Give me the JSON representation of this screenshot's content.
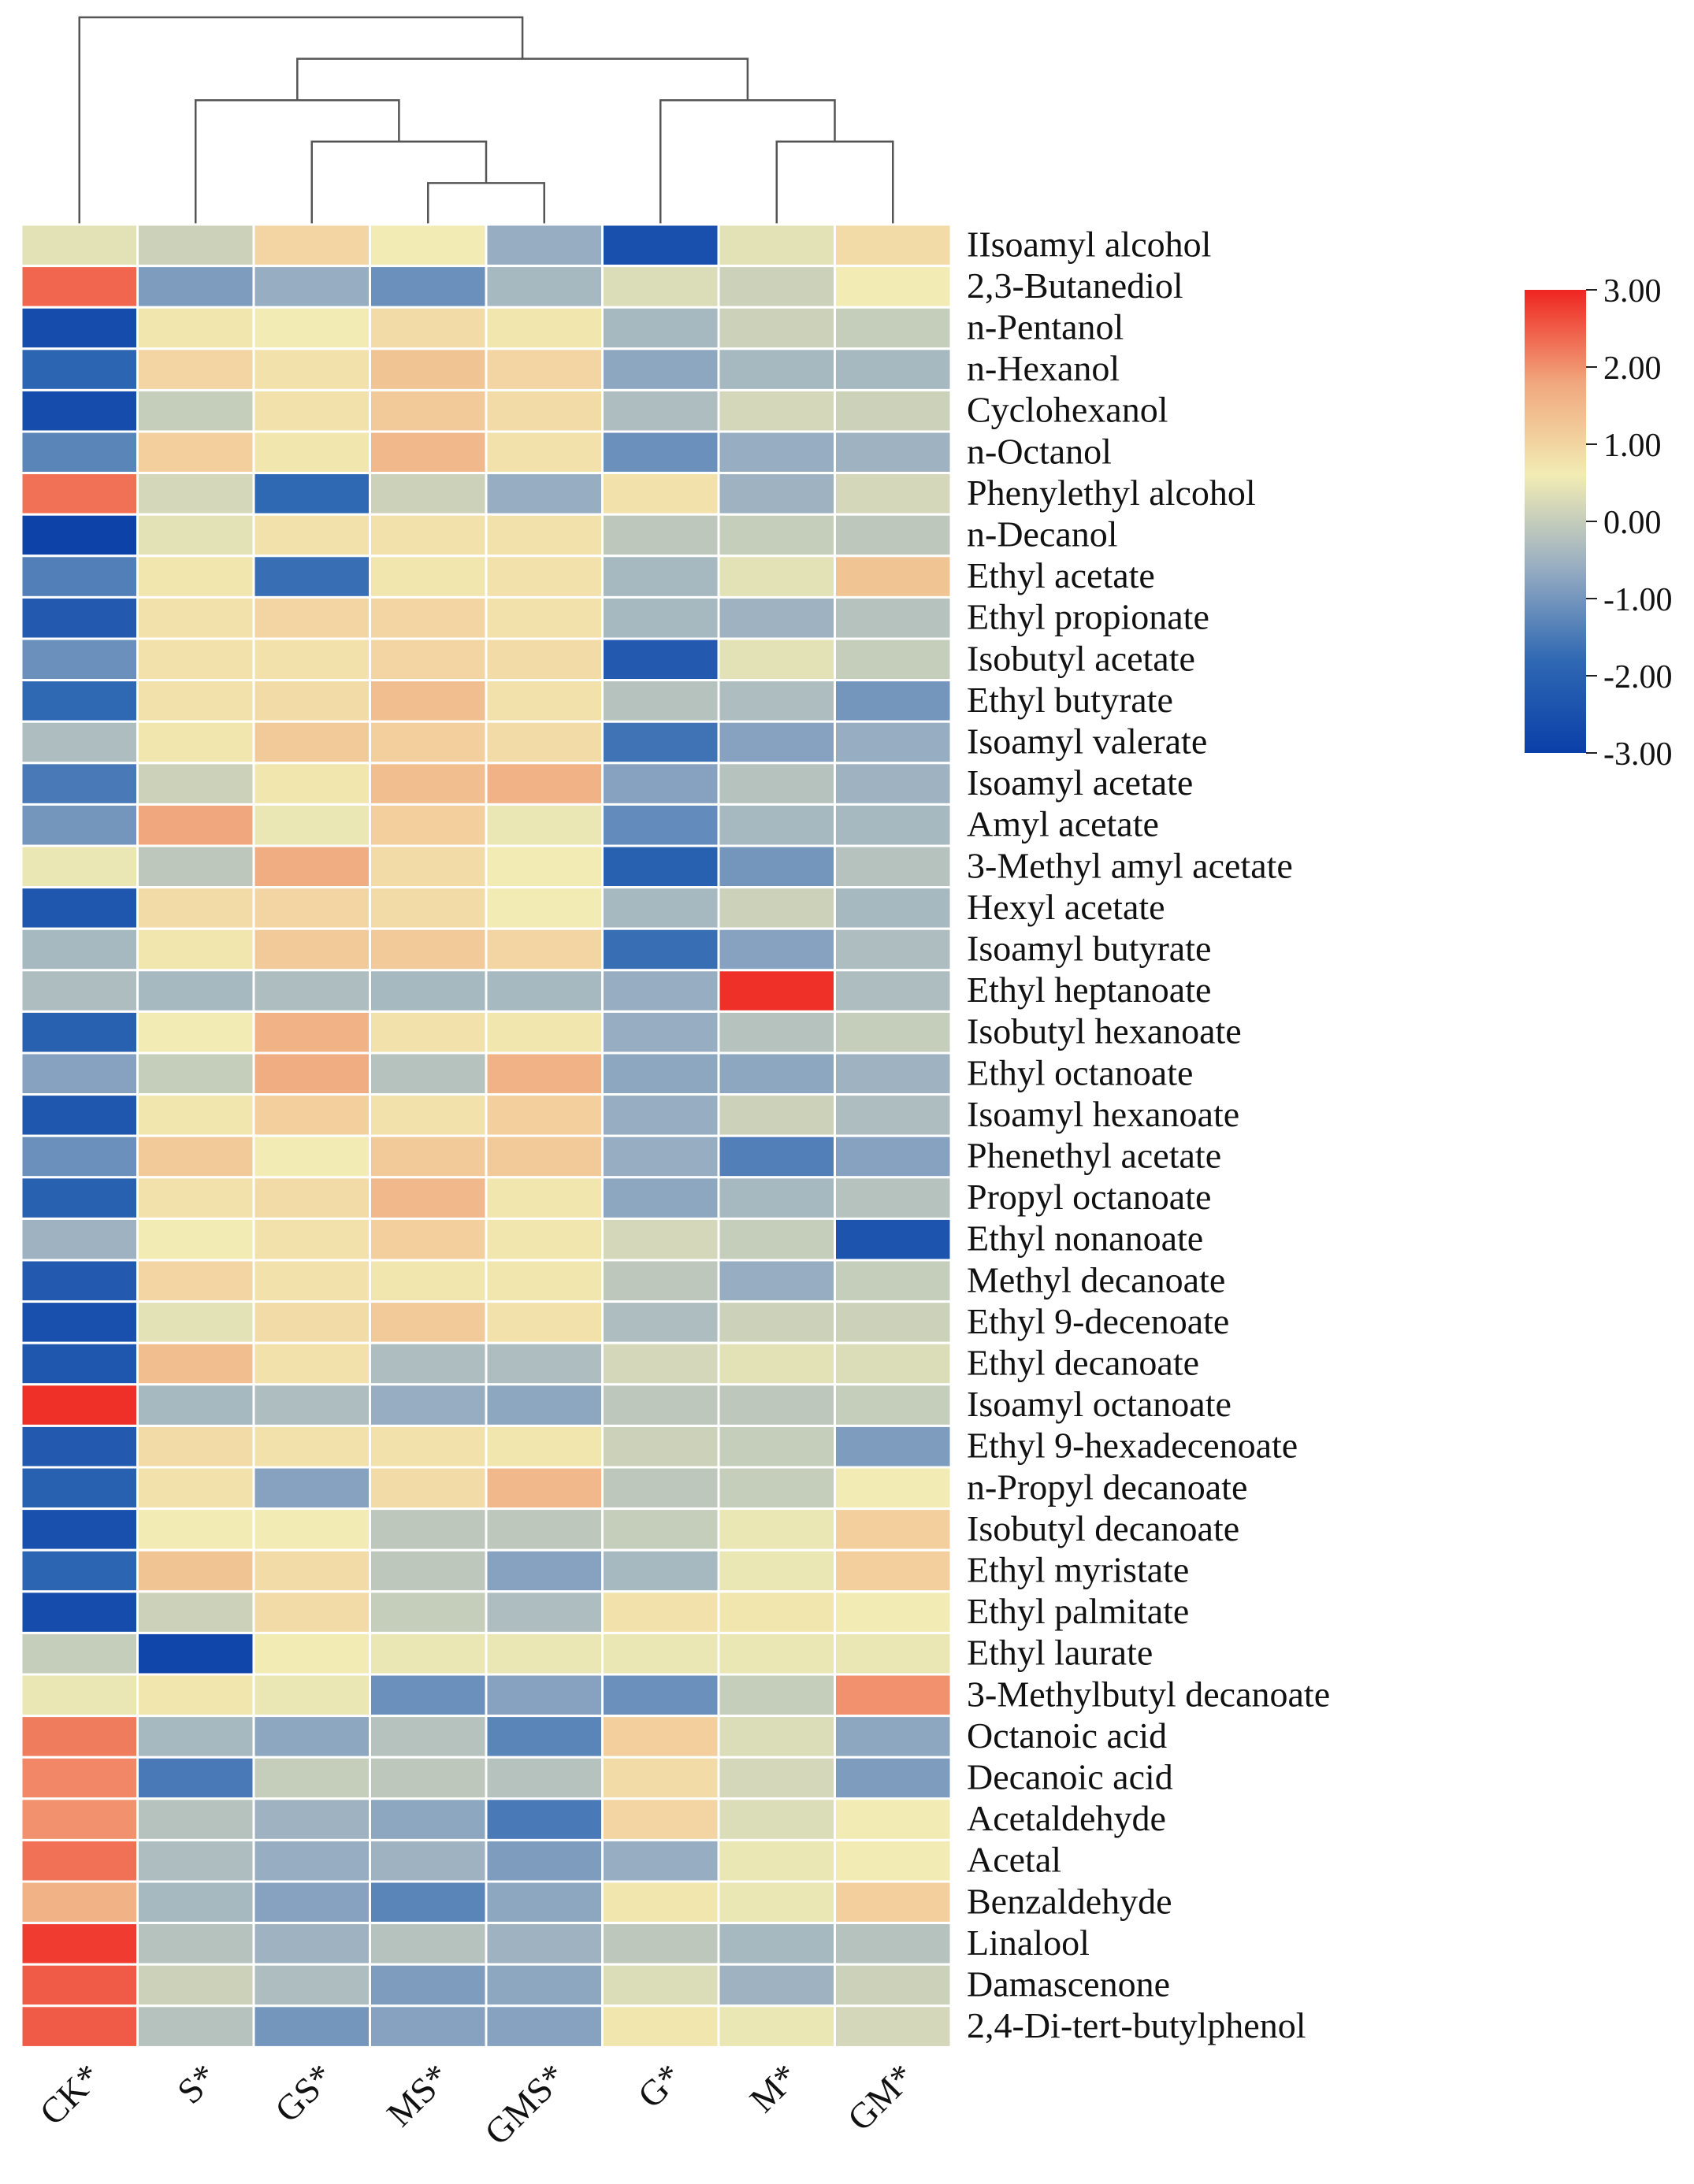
{
  "chart_data": {
    "type": "heatmap",
    "title": "",
    "columns": [
      "CK*",
      "S*",
      "GS*",
      "MS*",
      "GMS*",
      "G*",
      "M*",
      "GM*"
    ],
    "rows": [
      "IIsoamyl alcohol",
      "2,3-Butanediol",
      "n-Pentanol",
      "n-Hexanol",
      "Cyclohexanol",
      "n-Octanol",
      "Phenylethyl alcohol",
      "n-Decanol",
      "Ethyl acetate",
      "Ethyl propionate",
      "Isobutyl acetate",
      "Ethyl butyrate",
      "Isoamyl valerate",
      "Isoamyl acetate",
      "Amyl acetate",
      "3-Methyl amyl acetate",
      "Hexyl acetate",
      "Isoamyl butyrate",
      "Ethyl heptanoate",
      "Isobutyl hexanoate",
      "Ethyl octanoate",
      "Isoamyl hexanoate",
      "Phenethyl acetate",
      "Propyl octanoate",
      "Ethyl nonanoate",
      "Methyl decanoate",
      "Ethyl 9-decenoate",
      "Ethyl decanoate",
      "Isoamyl octanoate",
      "Ethyl 9-hexadecenoate",
      "n-Propyl decanoate",
      "Isobutyl decanoate",
      "Ethyl myristate",
      "Ethyl palmitate",
      "Ethyl laurate",
      "3-Methylbutyl decanoate",
      "Octanoic acid",
      "Decanoic acid",
      "Acetaldehyde",
      "Acetal",
      "Benzaldehyde",
      "Linalool",
      "Damascenone",
      "2,4-Di-tert-butylphenol"
    ],
    "values": [
      [
        0.4,
        0.1,
        1.0,
        0.6,
        -0.6,
        -2.5,
        0.4,
        0.9
      ],
      [
        2.4,
        -0.9,
        -0.6,
        -1.1,
        -0.4,
        0.3,
        0.1,
        0.6
      ],
      [
        -2.6,
        0.7,
        0.6,
        0.9,
        0.7,
        -0.4,
        0.1,
        0.0
      ],
      [
        -1.9,
        1.0,
        0.8,
        1.3,
        1.0,
        -0.7,
        -0.4,
        -0.4
      ],
      [
        -2.6,
        0.0,
        0.8,
        1.2,
        0.9,
        -0.3,
        0.2,
        0.1
      ],
      [
        -1.3,
        1.1,
        0.7,
        1.5,
        0.8,
        -1.1,
        -0.6,
        -0.5
      ],
      [
        2.3,
        0.2,
        -1.8,
        0.1,
        -0.6,
        0.8,
        -0.5,
        0.2
      ],
      [
        -2.9,
        0.4,
        0.8,
        0.8,
        0.8,
        -0.1,
        0.0,
        -0.1
      ],
      [
        -1.4,
        0.7,
        -1.7,
        0.7,
        0.8,
        -0.4,
        0.4,
        1.3
      ],
      [
        -2.2,
        0.8,
        1.0,
        1.0,
        0.8,
        -0.4,
        -0.5,
        -0.2
      ],
      [
        -1.1,
        0.8,
        0.8,
        1.0,
        0.9,
        -2.2,
        0.4,
        0.0
      ],
      [
        -1.8,
        0.8,
        0.9,
        1.4,
        0.8,
        -0.2,
        -0.3,
        -1.0
      ],
      [
        -0.3,
        0.7,
        1.2,
        1.1,
        0.9,
        -1.6,
        -0.8,
        -0.6
      ],
      [
        -1.5,
        0.1,
        0.7,
        1.4,
        1.6,
        -0.8,
        -0.2,
        -0.5
      ],
      [
        -1.0,
        1.8,
        0.5,
        1.1,
        0.5,
        -1.2,
        -0.4,
        -0.4
      ],
      [
        0.5,
        -0.1,
        1.7,
        0.9,
        0.6,
        -2.0,
        -1.0,
        -0.2
      ],
      [
        -2.3,
        0.9,
        1.0,
        0.9,
        0.6,
        -0.4,
        0.1,
        -0.4
      ],
      [
        -0.4,
        0.7,
        1.2,
        1.2,
        1.0,
        -1.7,
        -0.8,
        -0.3
      ],
      [
        -0.3,
        -0.4,
        -0.3,
        -0.4,
        -0.4,
        -0.6,
        2.9,
        -0.3
      ],
      [
        -2.0,
        0.6,
        1.6,
        0.8,
        0.7,
        -0.6,
        -0.2,
        0.0
      ],
      [
        -0.8,
        0.0,
        1.7,
        -0.2,
        1.6,
        -0.7,
        -0.7,
        -0.5
      ],
      [
        -2.3,
        0.7,
        1.1,
        0.8,
        1.1,
        -0.6,
        0.1,
        -0.3
      ],
      [
        -1.1,
        1.2,
        0.6,
        1.2,
        1.2,
        -0.6,
        -1.4,
        -0.8
      ],
      [
        -2.0,
        0.8,
        0.9,
        1.5,
        0.7,
        -0.7,
        -0.4,
        -0.2
      ],
      [
        -0.5,
        0.6,
        0.8,
        1.1,
        0.7,
        0.2,
        0.0,
        -2.4
      ],
      [
        -2.2,
        1.0,
        0.8,
        0.7,
        0.7,
        -0.1,
        -0.6,
        0.0
      ],
      [
        -2.5,
        0.4,
        0.9,
        1.2,
        0.8,
        -0.3,
        0.1,
        0.1
      ],
      [
        -2.3,
        1.4,
        0.8,
        -0.3,
        -0.3,
        0.2,
        0.4,
        0.3
      ],
      [
        2.9,
        -0.4,
        -0.3,
        -0.6,
        -0.7,
        -0.1,
        -0.1,
        0.0
      ],
      [
        -2.2,
        0.9,
        0.8,
        0.8,
        0.7,
        0.1,
        0.0,
        -0.9
      ],
      [
        -2.0,
        0.8,
        -0.8,
        0.9,
        1.5,
        -0.1,
        0.0,
        0.6
      ],
      [
        -2.5,
        0.6,
        0.6,
        -0.1,
        -0.1,
        0.0,
        0.5,
        1.1
      ],
      [
        -1.9,
        1.3,
        0.9,
        -0.1,
        -0.8,
        -0.4,
        0.5,
        1.1
      ],
      [
        -2.6,
        0.1,
        0.9,
        0.0,
        -0.3,
        0.8,
        0.7,
        0.6
      ],
      [
        0.0,
        -2.8,
        0.6,
        0.5,
        0.5,
        0.5,
        0.5,
        0.5
      ],
      [
        0.5,
        0.7,
        0.5,
        -1.1,
        -0.8,
        -1.1,
        0.0,
        2.0
      ],
      [
        2.2,
        -0.4,
        -0.7,
        -0.2,
        -1.3,
        1.1,
        0.3,
        -0.7
      ],
      [
        2.1,
        -1.5,
        0.0,
        -0.1,
        -0.2,
        0.9,
        0.2,
        -0.9
      ],
      [
        2.0,
        -0.2,
        -0.5,
        -0.7,
        -1.5,
        1.0,
        0.3,
        0.6
      ],
      [
        2.3,
        -0.3,
        -0.6,
        -0.5,
        -0.9,
        -0.6,
        0.5,
        0.6
      ],
      [
        1.6,
        -0.4,
        -0.8,
        -1.3,
        -0.7,
        0.7,
        0.5,
        1.1
      ],
      [
        2.8,
        -0.2,
        -0.5,
        -0.2,
        -0.5,
        -0.1,
        -0.4,
        -0.2
      ],
      [
        2.5,
        0.1,
        -0.3,
        -0.9,
        -0.7,
        0.3,
        -0.5,
        0.1
      ],
      [
        2.5,
        -0.2,
        -1.0,
        -0.8,
        -0.8,
        0.7,
        0.5,
        0.2
      ]
    ],
    "dendrogram": {
      "leaf_order": [
        "CK*",
        "S*",
        "GS*",
        "MS*",
        "GMS*",
        "G*",
        "M*",
        "GM*"
      ],
      "merges": [
        {
          "a": "MS*",
          "b": "GMS*",
          "node": "n1",
          "height": 1
        },
        {
          "a": "M*",
          "b": "GM*",
          "node": "n2",
          "height": 2
        },
        {
          "a": "GS*",
          "b": "n1",
          "node": "n3",
          "height": 2
        },
        {
          "a": "S*",
          "b": "n3",
          "node": "n4",
          "height": 3
        },
        {
          "a": "G*",
          "b": "n2",
          "node": "n5",
          "height": 3
        },
        {
          "a": "n4",
          "b": "n5",
          "node": "n6",
          "height": 4
        },
        {
          "a": "CK*",
          "b": "n6",
          "node": "n7",
          "height": 5
        }
      ]
    },
    "colorbar": {
      "min": -3.0,
      "max": 3.0,
      "ticks": [
        "3.00",
        "2.00",
        "1.00",
        "0.00",
        "-1.00",
        "-2.00",
        "-3.00"
      ],
      "colors": [
        "#0a3fa8",
        "#2f68b3",
        "#97adc2",
        "#f2ecb4",
        "#f1a77d",
        "#ef2520"
      ]
    }
  }
}
